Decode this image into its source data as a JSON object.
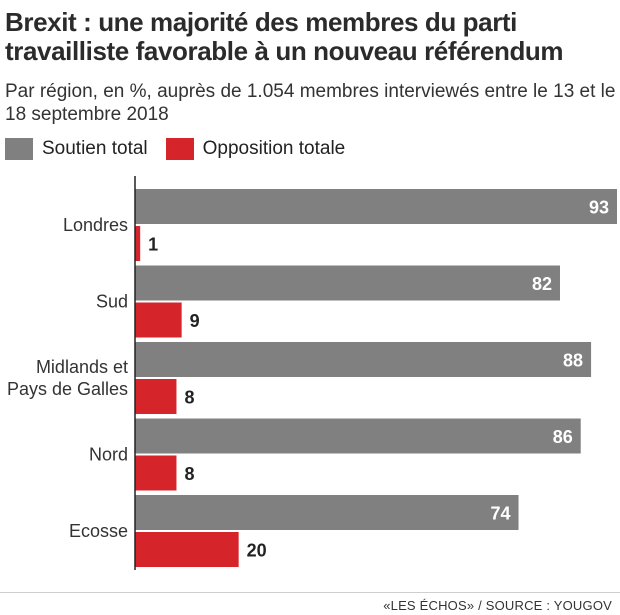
{
  "title": "Brexit : une majorité des membres du parti travailliste favorable à un nouveau référendum",
  "subtitle": "Par région, en %, auprès de 1.054 membres interviewés entre le 13 et le 18 septembre 2018",
  "legend": [
    {
      "label": "Soutien total",
      "color": "#808080"
    },
    {
      "label": "Opposition totale",
      "color": "#d6242b"
    }
  ],
  "source": "«LES ÉCHOS» / SOURCE : YOUGOV",
  "chart_data": {
    "type": "bar",
    "orientation": "horizontal",
    "categories": [
      "Londres",
      "Sud",
      "Midlands et Pays de Galles",
      "Nord",
      "Ecosse"
    ],
    "category_lines": [
      [
        "Londres"
      ],
      [
        "Sud"
      ],
      [
        "Midlands et",
        "Pays de Galles"
      ],
      [
        "Nord"
      ],
      [
        "Ecosse"
      ]
    ],
    "series": [
      {
        "name": "Soutien total",
        "color": "#808080",
        "values": [
          93,
          82,
          88,
          86,
          74
        ]
      },
      {
        "name": "Opposition totale",
        "color": "#d6242b",
        "values": [
          1,
          9,
          8,
          8,
          20
        ]
      }
    ],
    "xlim": [
      0,
      93
    ],
    "grid": false,
    "legend_position": "top-left"
  }
}
